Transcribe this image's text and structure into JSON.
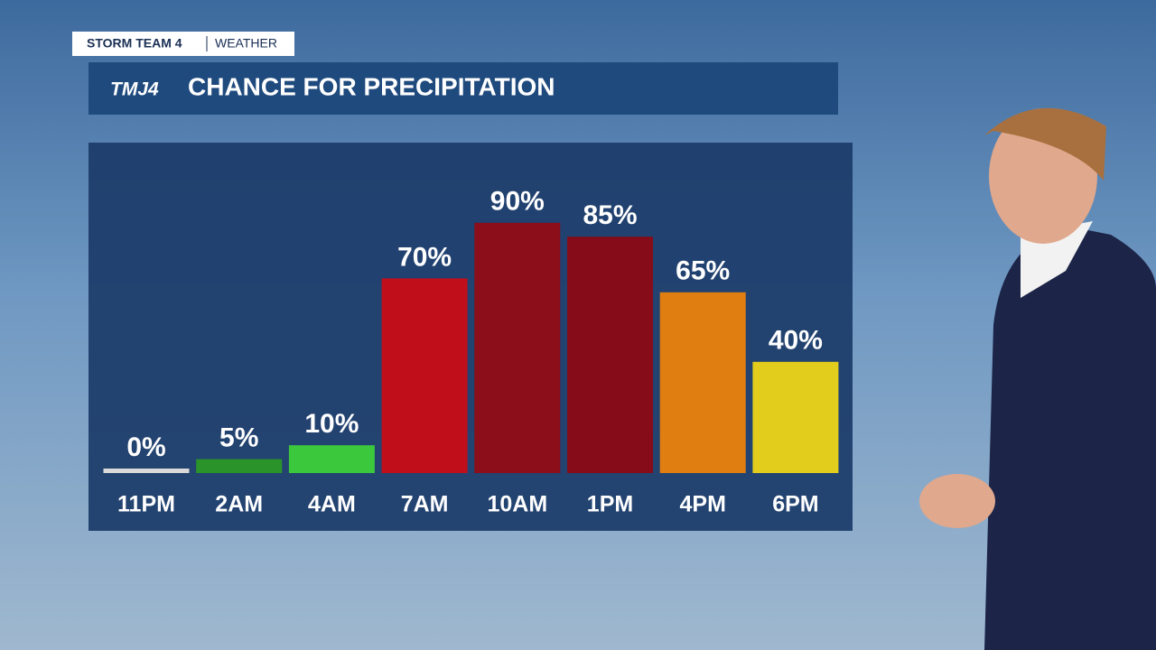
{
  "header": {
    "brand": "STORM TEAM 4",
    "section": "WEATHER",
    "logo": "TMJ4"
  },
  "chart_data": {
    "type": "bar",
    "title": "CHANCE FOR PRECIPITATION",
    "categories": [
      "11PM",
      "2AM",
      "4AM",
      "7AM",
      "10AM",
      "1PM",
      "4PM",
      "6PM"
    ],
    "values": [
      0,
      5,
      10,
      70,
      90,
      85,
      65,
      40
    ],
    "value_labels": [
      "0%",
      "5%",
      "10%",
      "70%",
      "90%",
      "85%",
      "65%",
      "40%"
    ],
    "colors": [
      "#d9d9d9",
      "#2a932a",
      "#3cc83c",
      "#c00f1b",
      "#8c0e1a",
      "#850c18",
      "#e17e12",
      "#e3cd1c"
    ]
  }
}
